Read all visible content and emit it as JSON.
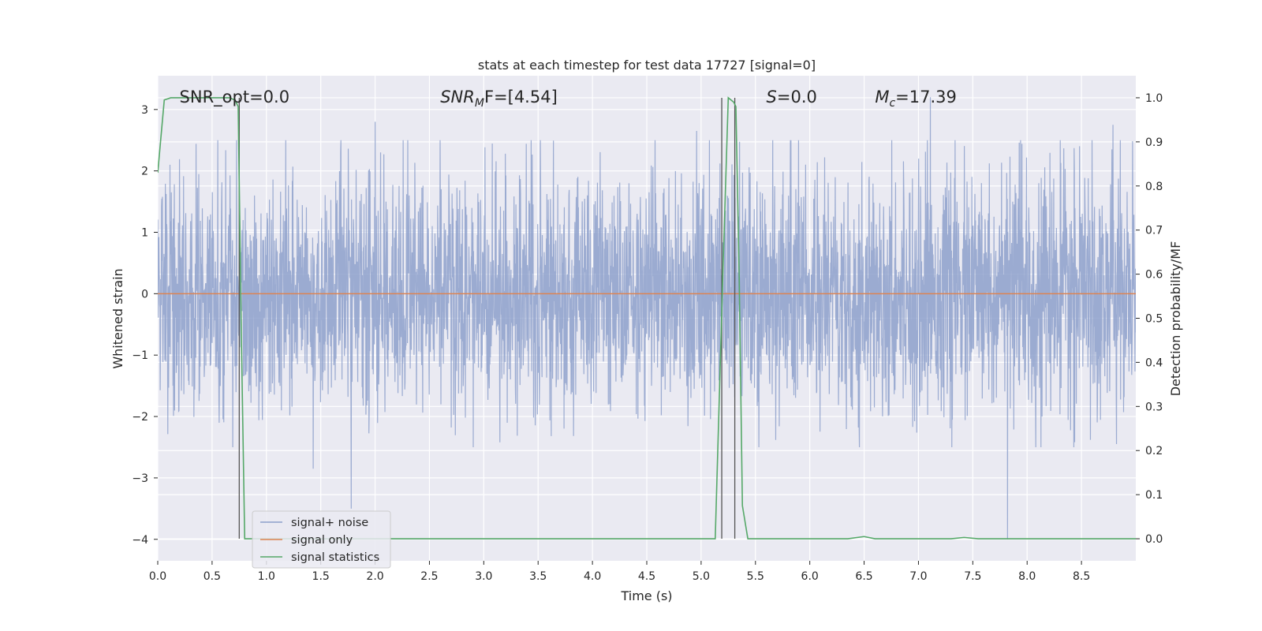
{
  "chart_data": {
    "type": "line",
    "title": "stats at each timestep for test data 17727 [signal=0]",
    "xlabel": "Time (s)",
    "ylabel": "Whitened strain",
    "y2label": "Detection probability/MF",
    "xlim": [
      0,
      9.0
    ],
    "ylim": [
      -4.35,
      3.55
    ],
    "y2lim": [
      -0.05,
      1.05
    ],
    "xticks": [
      "0.0",
      "0.5",
      "1.0",
      "1.5",
      "2.0",
      "2.5",
      "3.0",
      "3.5",
      "4.0",
      "4.5",
      "5.0",
      "5.5",
      "6.0",
      "6.5",
      "7.0",
      "7.5",
      "8.0",
      "8.5"
    ],
    "yticks": [
      "3",
      "2",
      "1",
      "0",
      "−1",
      "−2",
      "−3",
      "−4"
    ],
    "y2ticks": [
      "1.0",
      "0.9",
      "0.8",
      "0.7",
      "0.6",
      "0.5",
      "0.4",
      "0.3",
      "0.2",
      "0.1",
      "0.0"
    ],
    "grid": true,
    "legend_position": "lower-left",
    "annotations": [
      {
        "label": "SNR_opt=0.0",
        "x": 0.2,
        "y": 3.2
      },
      {
        "label": "SNR",
        "sub": "M",
        "rest": "F=[4.54]",
        "x": 2.6,
        "y": 3.2
      },
      {
        "label": "S",
        "rest": "=0.0",
        "x": 5.6,
        "y": 3.2
      },
      {
        "label": "M",
        "sub": "c",
        "rest": "=17.39",
        "x": 6.6,
        "y": 3.2
      }
    ],
    "vlines": [
      0.75,
      5.19,
      5.31
    ],
    "series": [
      {
        "name": "signal+ noise",
        "color": "#8da0cb",
        "note": "noise: dense random whitened strain, roughly within ±2 with spikes to ±3.2",
        "spikes": [
          [
            1.78,
            -3.5
          ],
          [
            7.82,
            -4.0
          ],
          [
            7.11,
            3.2
          ],
          [
            2.0,
            2.8
          ],
          [
            1.43,
            -2.85
          ],
          [
            4.96,
            2.65
          ],
          [
            8.79,
            2.75
          ]
        ]
      },
      {
        "name": "signal only",
        "color": "#dd8452",
        "x": [
          0,
          9.0
        ],
        "y": [
          0,
          0
        ]
      },
      {
        "name": "signal statistics",
        "color": "#55a868",
        "axis": "right",
        "x": [
          0,
          0.06,
          0.12,
          0.3,
          0.5,
          0.66,
          0.71,
          0.74,
          0.77,
          0.8,
          0.85,
          1.0,
          2.0,
          3.0,
          4.0,
          5.0,
          5.13,
          5.2,
          5.25,
          5.3,
          5.32,
          5.35,
          5.38,
          5.43,
          5.5,
          6.0,
          6.35,
          6.5,
          6.6,
          7.0,
          7.3,
          7.42,
          7.55,
          8.0,
          9.0
        ],
        "y": [
          0.83,
          0.995,
          1.0,
          1.0,
          1.0,
          1.0,
          0.995,
          0.98,
          0.45,
          0.0,
          0.0,
          0.0,
          0.0,
          0.0,
          0.0,
          0.0,
          0.0,
          0.6,
          1.0,
          0.99,
          0.98,
          0.6,
          0.075,
          0.0,
          0.0,
          0.0,
          0.0,
          0.005,
          0.0,
          0.0,
          0.0,
          0.003,
          0.0,
          0.0,
          0.0
        ]
      }
    ]
  }
}
